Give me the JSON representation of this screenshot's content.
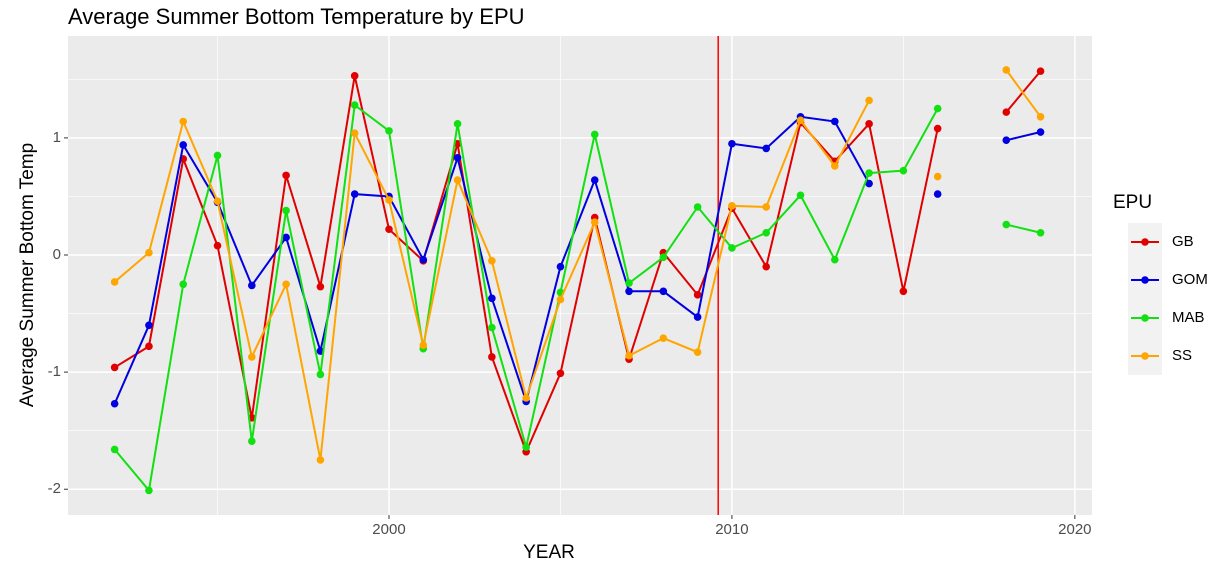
{
  "chart_data": {
    "type": "line",
    "title": "Average Summer Bottom Temperature by EPU",
    "x_label": "YEAR",
    "y_label": "Average Summer Bottom Temp",
    "legend_title": "EPU",
    "legend_position": "right",
    "x": [
      1992,
      1993,
      1994,
      1995,
      1996,
      1997,
      1998,
      1999,
      2000,
      2001,
      2002,
      2003,
      2004,
      2005,
      2006,
      2007,
      2008,
      2009,
      2010,
      2011,
      2012,
      2013,
      2014,
      2015,
      2016,
      2017,
      2018,
      2019
    ],
    "series": [
      {
        "name": "GB",
        "color": "#e00000",
        "values": [
          -0.96,
          -0.78,
          0.82,
          0.08,
          -1.39,
          0.68,
          -0.27,
          1.53,
          0.22,
          -0.05,
          0.95,
          -0.87,
          -1.68,
          -1.01,
          0.32,
          -0.89,
          0.02,
          -0.34,
          0.4,
          -0.1,
          1.13,
          0.8,
          1.12,
          -0.31,
          1.08,
          null,
          1.22,
          1.57
        ]
      },
      {
        "name": "GOM",
        "color": "#0000e0",
        "values": [
          -1.27,
          -0.6,
          0.94,
          0.45,
          -0.26,
          0.15,
          -0.82,
          0.52,
          0.5,
          -0.04,
          0.83,
          -0.37,
          -1.25,
          -0.1,
          0.64,
          -0.31,
          -0.31,
          -0.53,
          0.95,
          0.91,
          1.18,
          1.14,
          0.61,
          null,
          0.52,
          null,
          0.98,
          1.05
        ]
      },
      {
        "name": "MAB",
        "color": "#11e011",
        "values": [
          -1.66,
          -2.01,
          -0.25,
          0.85,
          -1.59,
          0.38,
          -1.02,
          1.28,
          1.06,
          -0.8,
          1.12,
          -0.62,
          -1.64,
          -0.32,
          1.03,
          -0.24,
          -0.02,
          0.41,
          0.06,
          0.19,
          0.51,
          -0.04,
          0.7,
          0.72,
          1.25,
          null,
          0.26,
          0.19
        ]
      },
      {
        "name": "SS",
        "color": "#ffa500",
        "values": [
          -0.23,
          0.02,
          1.14,
          0.46,
          -0.87,
          -0.25,
          -1.75,
          1.04,
          0.47,
          -0.77,
          0.64,
          -0.05,
          -1.22,
          -0.38,
          0.28,
          -0.86,
          -0.71,
          -0.83,
          0.42,
          0.41,
          1.15,
          0.76,
          1.32,
          null,
          0.67,
          null,
          1.58,
          1.18
        ]
      }
    ],
    "xlim": [
      1990.64,
      2020.5
    ],
    "ylim": [
      -2.22,
      1.87
    ],
    "xticks": [
      2000,
      2010,
      2020
    ],
    "yticks": [
      -2,
      -1,
      0,
      1
    ],
    "x_minor_gridlines": [
      1995,
      2005,
      2015
    ],
    "y_minor_gridlines": [
      -1.5,
      -0.5,
      0.5,
      1.5
    ],
    "grid": true,
    "vline": {
      "x": 2009.6,
      "color": "#ff0000"
    }
  }
}
